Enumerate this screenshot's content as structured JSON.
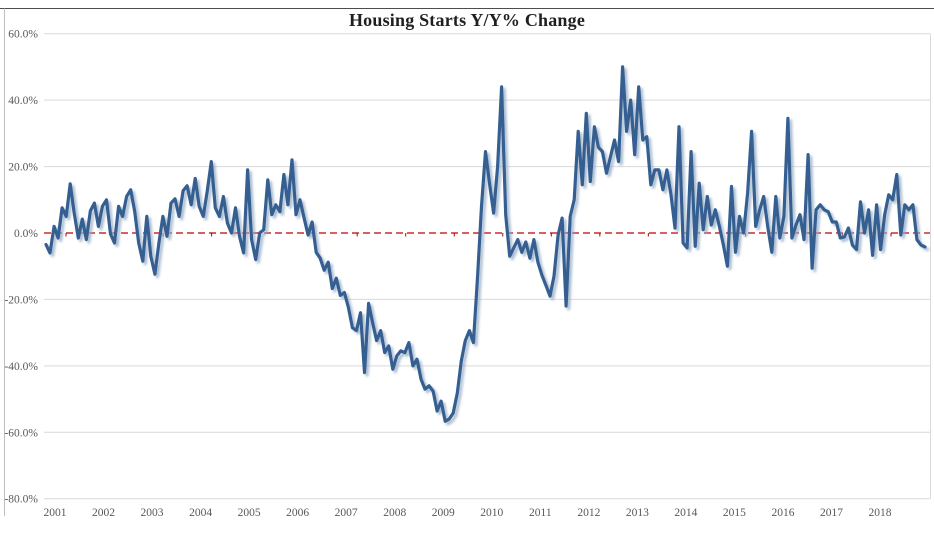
{
  "title": "Housing Starts Y/Y% Change",
  "chart_data": {
    "type": "line",
    "title": "Housing Starts Y/Y% Change",
    "frequency": "monthly",
    "x_range_years": [
      2001,
      2018
    ],
    "x_tick_labels": [
      "2001",
      "2002",
      "2003",
      "2004",
      "2005",
      "2006",
      "2007",
      "2008",
      "2009",
      "2010",
      "2011",
      "2012",
      "2013",
      "2014",
      "2015",
      "2016",
      "2017",
      "2018"
    ],
    "y_tick_labels": [
      "60.0%",
      "40.0%",
      "20.0%",
      "0.0%",
      "-20.0%",
      "-40.0%",
      "-60.0%",
      "-80.0%"
    ],
    "y_tick_values": [
      60,
      40,
      20,
      0,
      -20,
      -40,
      -60,
      -80
    ],
    "ylim": [
      -80,
      60
    ],
    "grid": true,
    "legend": "none",
    "colors": {
      "line": "#365F91",
      "line_shadow": "#93ABC6",
      "zero_line": "#C00000",
      "gridline": "#D9D9D9",
      "tick_text": "#595959",
      "title_text": "#1F1F1F",
      "border_top": "#4D4D4D",
      "border_left": "#BFBFBF"
    },
    "zero_line": {
      "value": 0,
      "style": "dashed",
      "color": "#C00000"
    },
    "series": [
      {
        "name": "Housing Starts Y/Y % Change",
        "color": "#365F91",
        "values": [
          -3.5,
          -6,
          2,
          -1.5,
          7.6,
          5,
          14.8,
          6,
          -1.5,
          4.2,
          -2,
          6.7,
          9,
          2,
          8,
          10,
          -0.3,
          -3,
          8,
          5,
          11,
          13,
          6.5,
          -3,
          -8.5,
          5,
          -7,
          -12.4,
          -3,
          5,
          -1,
          9,
          10.3,
          5,
          12.7,
          14.2,
          8.5,
          16.4,
          8,
          5,
          12.7,
          21.5,
          7.6,
          5,
          11,
          3,
          0,
          7.6,
          -1,
          -6,
          19,
          -2,
          -8,
          0,
          1,
          16,
          5.5,
          8.5,
          6.4,
          17.6,
          8.5,
          22,
          5.5,
          10,
          4.5,
          -0.6,
          3.3,
          -5.8,
          -7.6,
          -11.2,
          -8.8,
          -16.7,
          -13.6,
          -18.8,
          -17.9,
          -22.4,
          -28.5,
          -29.4,
          -24,
          -42,
          -21.2,
          -27,
          -32.4,
          -29.4,
          -36,
          -34,
          -41,
          -37,
          -35.5,
          -36,
          -33,
          -40,
          -38,
          -44,
          -47,
          -46,
          -47.6,
          -53.6,
          -50.6,
          -56.7,
          -56,
          -54.2,
          -48.2,
          -38.5,
          -32.4,
          -29.4,
          -33,
          -14,
          8,
          24.5,
          15,
          6,
          20,
          44,
          5.5,
          -7,
          -4.5,
          -2,
          -5.8,
          -2.7,
          -7.6,
          -2,
          -8.8,
          -12.7,
          -15.8,
          -19,
          -13,
          -0.6,
          4.5,
          -22,
          5,
          10,
          30.6,
          14.5,
          36,
          15.5,
          32,
          25.8,
          24.5,
          18,
          23,
          28,
          21.5,
          50,
          30.6,
          40,
          23.6,
          44,
          28,
          29,
          14.5,
          19,
          19,
          13,
          19,
          11.5,
          1.5,
          32,
          -3,
          -4.5,
          24.5,
          -4,
          15,
          1,
          11,
          2.4,
          7,
          2,
          -3.6,
          -10,
          14,
          -5.8,
          5,
          0,
          12,
          30.6,
          2,
          7,
          11,
          2,
          -5.8,
          11,
          -1.5,
          5,
          34.5,
          -1.5,
          2.4,
          5.5,
          -2,
          23.6,
          -10.6,
          7,
          8.5,
          7,
          6.4,
          3.3,
          3.3,
          -1.5,
          -1.2,
          1.5,
          -3.6,
          -5,
          9.4,
          0,
          7,
          -6.7,
          8.5,
          -5,
          5.5,
          11.5,
          10,
          17.6,
          -0.6,
          8.5,
          7,
          8.5,
          -2,
          -3.6,
          -4.2
        ]
      }
    ]
  }
}
